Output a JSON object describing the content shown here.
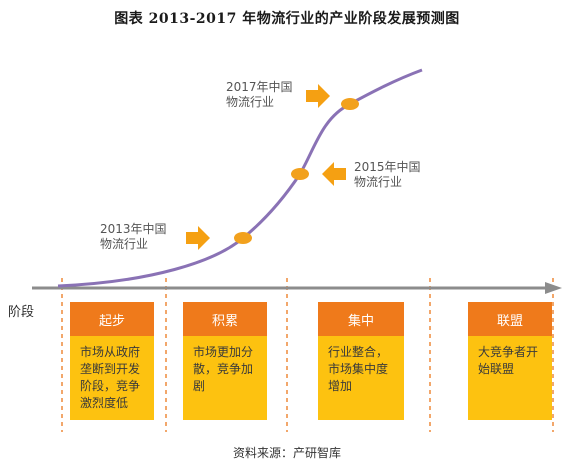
{
  "title": "图表    2013-2017 年物流行业的产业阶段发展预测图",
  "axis_label": "阶段",
  "callouts": [
    {
      "line1": "2013年中国",
      "line2": "物流行业"
    },
    {
      "line1": "2015年中国",
      "line2": "物流行业"
    },
    {
      "line1": "2017年中国",
      "line2": "物流行业"
    }
  ],
  "stages": [
    {
      "name": "起步",
      "description": "市场从政府垄断到开发阶段，竞争激烈度低"
    },
    {
      "name": "积累",
      "description": "市场更加分散，竞争加剧"
    },
    {
      "name": "集中",
      "description": "行业整合，市场集中度增加"
    },
    {
      "name": "联盟",
      "description": "大竞争者开始联盟"
    }
  ],
  "source": "资料来源：产研智库",
  "colors": {
    "curve": "#8a72b5",
    "axis": "#8c8c8c",
    "marker": "#f2a11d",
    "arrow": "#f5a012",
    "card": "#fdc210",
    "card_header": "#ef7a1b",
    "dashed_line": "#ee8a3a"
  }
}
